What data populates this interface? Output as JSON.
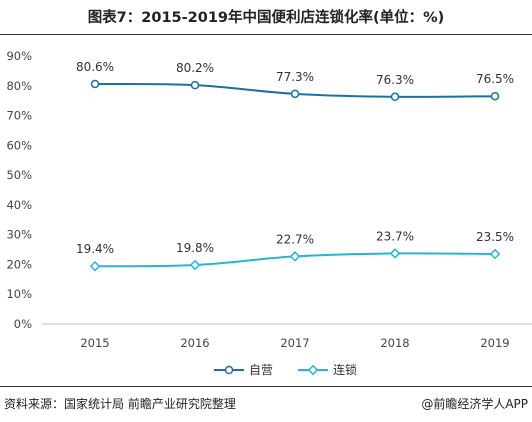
{
  "title": "图表7：2015-2019年中国便利店连锁化率(单位：%)",
  "source": "资料来源：国家统计局 前瞻产业研究院整理",
  "brand": "@前瞻经济学人APP",
  "chart_data": {
    "type": "line",
    "title": "图表7：2015-2019年中国便利店连锁化率(单位：%)",
    "categories": [
      "2015",
      "2016",
      "2017",
      "2018",
      "2019"
    ],
    "ylim": [
      0,
      90
    ],
    "yticks": [
      "0%",
      "10%",
      "20%",
      "30%",
      "40%",
      "50%",
      "60%",
      "70%",
      "80%",
      "90%"
    ],
    "grid": false,
    "legend_position": "bottom",
    "series": [
      {
        "name": "自营",
        "values": [
          80.6,
          80.2,
          77.3,
          76.3,
          76.5
        ],
        "labels": [
          "80.6%",
          "80.2%",
          "77.3%",
          "76.3%",
          "76.5%"
        ],
        "color": "#1f6f9f"
      },
      {
        "name": "连锁",
        "values": [
          19.4,
          19.8,
          22.7,
          23.7,
          23.5
        ],
        "labels": [
          "19.4%",
          "19.8%",
          "22.7%",
          "23.7%",
          "23.5%"
        ],
        "color": "#2ab5cf"
      }
    ]
  }
}
